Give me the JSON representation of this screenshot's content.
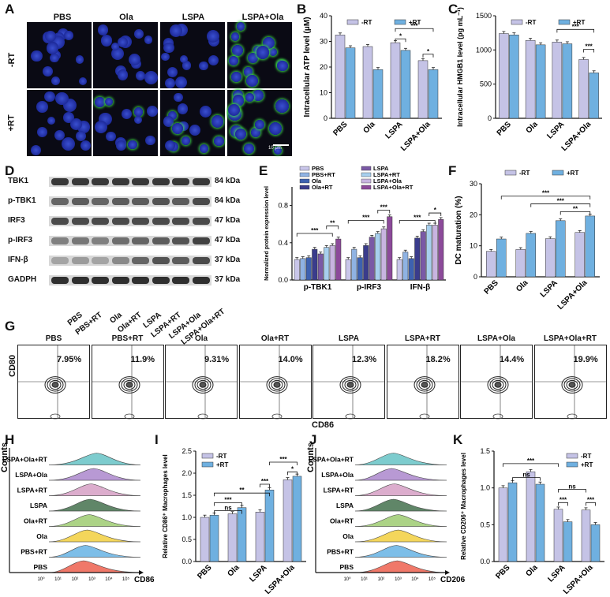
{
  "panels": {
    "A": "A",
    "B": "B",
    "C": "C",
    "D": "D",
    "E": "E",
    "F": "F",
    "G": "G",
    "H": "H",
    "I": "I",
    "J": "J",
    "K": "K"
  },
  "panelA": {
    "cols": [
      "PBS",
      "Ola",
      "LSPA",
      "LSPA+Ola"
    ],
    "rows": [
      "-RT",
      "+RT"
    ],
    "scale": "10 μm"
  },
  "panelD": {
    "proteins": [
      "TBK1",
      "p-TBK1",
      "IRF3",
      "p-IRF3",
      "IFN-β",
      "GADPH"
    ],
    "sizes": [
      "84 kDa",
      "84 kDa",
      "47 kDa",
      "47 kDa",
      "37 kDa",
      "37 kDa"
    ],
    "lanes": [
      "PBS",
      "PBS+RT",
      "Ola",
      "Ola+RT",
      "LSPA",
      "LSPA+RT",
      "LSPA+Ola",
      "LSPA+Ola+RT"
    ]
  },
  "panelG": {
    "groups": [
      "PBS",
      "PBS+RT",
      "Ola",
      "Ola+RT",
      "LSPA",
      "LSPA+RT",
      "LSPA+Ola",
      "LSPA+Ola+RT"
    ],
    "percents": [
      "7.95%",
      "11.9%",
      "9.31%",
      "14.0%",
      "12.3%",
      "18.2%",
      "14.4%",
      "19.9%"
    ],
    "ylabel": "CD80",
    "xlabel": "CD86"
  },
  "panelH": {
    "groups": [
      "LSPA+Ola+RT",
      "LSPA+Ola",
      "LSPA+RT",
      "LSPA",
      "Ola+RT",
      "Ola",
      "PBS+RT",
      "PBS"
    ],
    "ylabel": "Counts",
    "xlabel": "CD86",
    "ticks": [
      "10⁰",
      "10¹",
      "10²",
      "10³",
      "10⁴",
      "10⁵"
    ]
  },
  "panelJ": {
    "groups": [
      "LSPA+Ola+RT",
      "LSPA+Ola",
      "LSPA+RT",
      "LSPA",
      "Ola+RT",
      "Ola",
      "PBS+RT",
      "PBS"
    ],
    "ylabel": "Counts",
    "xlabel": "CD206",
    "ticks": [
      "10⁰",
      "10¹",
      "10²",
      "10³",
      "10⁴",
      "10⁵"
    ]
  },
  "colors": {
    "minusRT": "#c5c3e6",
    "plusRT": "#6fb0e0"
  },
  "chart_data": [
    {
      "id": "B",
      "type": "bar",
      "categories": [
        "PBS",
        "Ola",
        "LSPA",
        "LSPA+Ola"
      ],
      "series": [
        {
          "name": "-RT",
          "values": [
            32.5,
            28,
            29.5,
            22.5
          ]
        },
        {
          "name": "+RT",
          "values": [
            27.5,
            19,
            26.5,
            19
          ]
        }
      ],
      "ylabel": "Intracellular ATP level (μM)",
      "ylim": [
        0,
        40
      ],
      "yticks": [
        0,
        10,
        20,
        30,
        40
      ],
      "annotations": [
        "*",
        "***",
        "*"
      ]
    },
    {
      "id": "C",
      "type": "bar",
      "categories": [
        "PBS",
        "Ola",
        "LSPA",
        "LSPA+Ola"
      ],
      "series": [
        {
          "name": "-RT",
          "values": [
            1240,
            1140,
            1115,
            860
          ]
        },
        {
          "name": "+RT",
          "values": [
            1220,
            1075,
            1090,
            665
          ]
        }
      ],
      "ylabel": "Intracellular HMGB1 level (pg mL⁻¹)",
      "ylim": [
        0,
        1500
      ],
      "yticks": [
        0,
        500,
        1000,
        1500
      ],
      "annotations": [
        "***",
        "***"
      ]
    },
    {
      "id": "E",
      "type": "bar",
      "categories": [
        "p-TBK1",
        "p-IRF3",
        "IFN-β"
      ],
      "series": [
        {
          "name": "PBS",
          "values": [
            0.22,
            0.22,
            0.22
          ]
        },
        {
          "name": "PBS+RT",
          "values": [
            0.23,
            0.33,
            0.3
          ]
        },
        {
          "name": "Ola",
          "values": [
            0.24,
            0.24,
            0.23
          ]
        },
        {
          "name": "Ola+RT",
          "values": [
            0.33,
            0.37,
            0.45
          ]
        },
        {
          "name": "LSPA",
          "values": [
            0.28,
            0.46,
            0.52
          ]
        },
        {
          "name": "LSPA+RT",
          "values": [
            0.35,
            0.5,
            0.59
          ]
        },
        {
          "name": "LSPA+Ola",
          "values": [
            0.37,
            0.55,
            0.59
          ]
        },
        {
          "name": "LSPA+Ola+RT",
          "values": [
            0.44,
            0.68,
            0.65
          ]
        }
      ],
      "ylabel": "Normalized protein expression level",
      "ylim": [
        0,
        1.0
      ],
      "yticks": [
        0.0,
        0.4,
        0.8
      ],
      "annotations": [
        "***",
        "**",
        "***",
        "***",
        "***",
        "*"
      ]
    },
    {
      "id": "F",
      "type": "bar",
      "categories": [
        "PBS",
        "Ola",
        "LSPA",
        "LSPA+Ola"
      ],
      "series": [
        {
          "name": "-RT",
          "values": [
            8.2,
            8.8,
            12.3,
            14.3
          ]
        },
        {
          "name": "+RT",
          "values": [
            12.2,
            14.0,
            18.1,
            19.6
          ]
        }
      ],
      "ylabel": "DC maturation (%)",
      "ylim": [
        0,
        30
      ],
      "yticks": [
        0,
        10,
        20,
        30
      ],
      "annotations": [
        "***",
        "***",
        "**"
      ]
    },
    {
      "id": "I",
      "type": "bar",
      "categories": [
        "PBS",
        "Ola",
        "LSPA",
        "LSPA+Ola"
      ],
      "series": [
        {
          "name": "-RT",
          "values": [
            1.0,
            1.08,
            1.12,
            1.85
          ]
        },
        {
          "name": "+RT",
          "values": [
            1.05,
            1.22,
            1.62,
            1.93
          ]
        }
      ],
      "ylabel": "Relative CD86⁺ Macrophages level",
      "ylim": [
        0,
        2.5
      ],
      "yticks": [
        0,
        0.5,
        1.0,
        1.5,
        2.0,
        2.5
      ],
      "annotations": [
        "ns",
        "***",
        "**",
        "***",
        "***",
        "*"
      ]
    },
    {
      "id": "K",
      "type": "bar",
      "categories": [
        "PBS",
        "Ola",
        "LSPA",
        "LSPA+Ola"
      ],
      "series": [
        {
          "name": "-RT",
          "values": [
            1.0,
            1.22,
            0.71,
            0.7
          ]
        },
        {
          "name": "+RT",
          "values": [
            1.07,
            1.05,
            0.54,
            0.5
          ]
        }
      ],
      "ylabel": "Relative CD206⁺ Macrophages level",
      "ylim": [
        0,
        1.5
      ],
      "yticks": [
        0,
        0.5,
        1.0,
        1.5
      ],
      "annotations": [
        "***",
        "ns",
        "***",
        "ns",
        "***"
      ]
    }
  ]
}
